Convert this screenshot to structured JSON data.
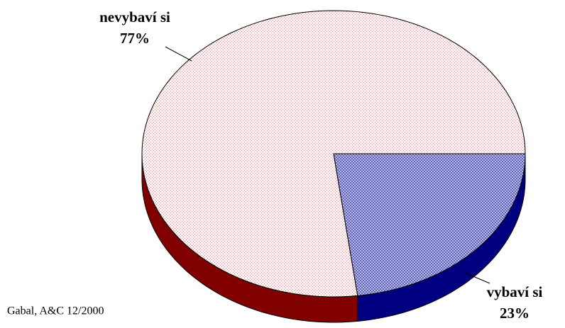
{
  "chart_data": {
    "type": "pie",
    "categories": [
      "nevybaví si",
      "vybaví si"
    ],
    "values": [
      77,
      23
    ],
    "value_labels": [
      "77%",
      "23%"
    ],
    "colors": [
      "#800000",
      "#000080"
    ],
    "source": "Gabal, A&C 12/2000"
  }
}
